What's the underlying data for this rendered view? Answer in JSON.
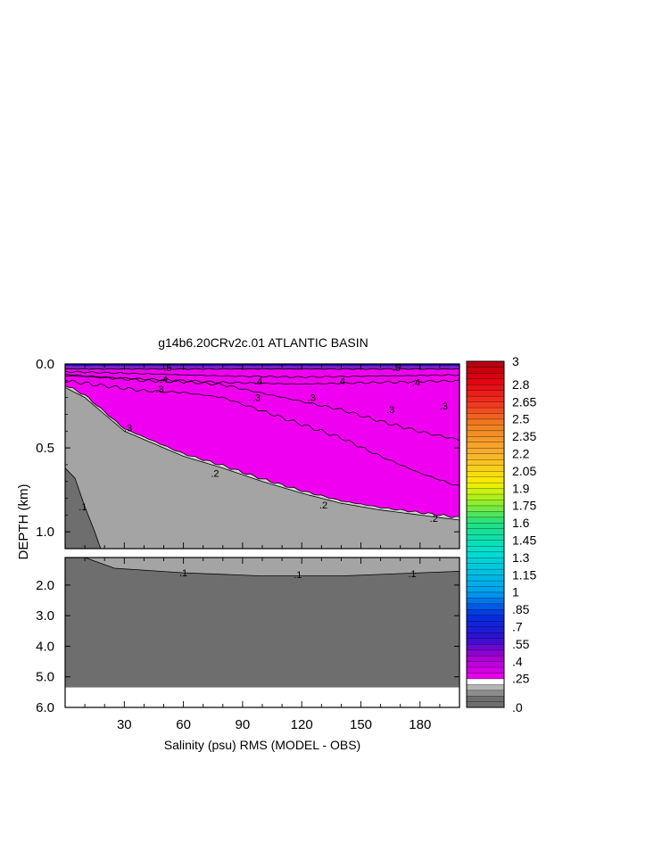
{
  "chart_data": {
    "type": "heatmap",
    "title": "g14b6.20CRv2c.01 ATLANTIC BASIN",
    "xlabel": "Salinity (psu) RMS (MODEL - OBS)",
    "ylabel": "DEPTH (km)",
    "x_range": [
      0,
      200
    ],
    "x_ticks": [
      30,
      60,
      90,
      120,
      150,
      180
    ],
    "x_tick_labels": [
      "30",
      "60",
      "90",
      "120",
      "150",
      "180"
    ],
    "upper_panel": {
      "depth_range_km": [
        0.0,
        1.1
      ],
      "y_ticks": [
        0.0,
        0.5,
        1.0
      ],
      "y_tick_labels": [
        "0.0",
        "0.5",
        "1.0"
      ]
    },
    "lower_panel": {
      "depth_range_km": [
        1.1,
        6.0
      ],
      "y_ticks": [
        2.0,
        3.0,
        4.0,
        5.0,
        6.0
      ],
      "y_tick_labels": [
        "2.0",
        "3.0",
        "4.0",
        "5.0",
        "6.0"
      ],
      "no_data_below_km": 5.35
    },
    "contours": [
      {
        "level": 0.1,
        "label": ".1",
        "upper_depth_km": [
          [
            0,
            0.62
          ],
          [
            5,
            0.68
          ],
          [
            10,
            0.85
          ],
          [
            15,
            1.0
          ],
          [
            18,
            1.1
          ]
        ],
        "lower_depth_km": [
          [
            10,
            1.1
          ],
          [
            25,
            1.45
          ],
          [
            60,
            1.6
          ],
          [
            100,
            1.7
          ],
          [
            140,
            1.7
          ],
          [
            200,
            1.55
          ]
        ]
      },
      {
        "level": 0.2,
        "label": ".2",
        "depth_km": [
          [
            0,
            0.14
          ],
          [
            10,
            0.2
          ],
          [
            20,
            0.3
          ],
          [
            30,
            0.4
          ],
          [
            40,
            0.45
          ],
          [
            60,
            0.55
          ],
          [
            80,
            0.62
          ],
          [
            100,
            0.7
          ],
          [
            120,
            0.77
          ],
          [
            140,
            0.83
          ],
          [
            160,
            0.87
          ],
          [
            180,
            0.9
          ],
          [
            200,
            0.93
          ]
        ]
      },
      {
        "level": 0.3,
        "label": ".3",
        "depth_km": [
          [
            0,
            0.1
          ],
          [
            20,
            0.13
          ],
          [
            40,
            0.16
          ],
          [
            60,
            0.17
          ],
          [
            80,
            0.2
          ],
          [
            100,
            0.28
          ],
          [
            120,
            0.36
          ],
          [
            140,
            0.44
          ],
          [
            160,
            0.55
          ],
          [
            180,
            0.65
          ],
          [
            200,
            0.73
          ]
        ]
      },
      {
        "level": 0.4,
        "label": ".4",
        "depth_km": [
          [
            0,
            0.07
          ],
          [
            40,
            0.09
          ],
          [
            80,
            0.11
          ],
          [
            120,
            0.12
          ],
          [
            160,
            0.11
          ],
          [
            200,
            0.1
          ]
        ]
      },
      {
        "level": 0.5,
        "label": ".5",
        "depth_km": [
          [
            0,
            0.03
          ],
          [
            50,
            0.03
          ],
          [
            100,
            0.03
          ],
          [
            150,
            0.03
          ],
          [
            200,
            0.03
          ]
        ]
      }
    ],
    "contour_labels": [
      {
        "text": ".1",
        "x": 9,
        "depth_km": 0.85
      },
      {
        "text": ".2",
        "x": 76,
        "depth_km": 0.65
      },
      {
        "text": ".2",
        "x": 131,
        "depth_km": 0.84
      },
      {
        "text": ".2",
        "x": 187,
        "depth_km": 0.92
      },
      {
        "text": ".3",
        "x": 32,
        "depth_km": 0.38
      },
      {
        "text": ".3",
        "x": 48,
        "depth_km": 0.15
      },
      {
        "text": ".3",
        "x": 97,
        "depth_km": 0.2
      },
      {
        "text": ".3",
        "x": 125,
        "depth_km": 0.2
      },
      {
        "text": ".3",
        "x": 165,
        "depth_km": 0.27
      },
      {
        "text": ".3",
        "x": 192,
        "depth_km": 0.25
      },
      {
        "text": ".4",
        "x": 50,
        "depth_km": 0.09
      },
      {
        "text": ".4",
        "x": 98,
        "depth_km": 0.1
      },
      {
        "text": ".4",
        "x": 140,
        "depth_km": 0.1
      },
      {
        "text": ".4",
        "x": 178,
        "depth_km": 0.11
      },
      {
        "text": ".5",
        "x": 52,
        "depth_km": 0.02
      },
      {
        "text": ".5",
        "x": 168,
        "depth_km": 0.02
      },
      {
        "text": ".1",
        "x": 60,
        "depth_km": 1.6
      },
      {
        "text": ".1",
        "x": 118,
        "depth_km": 1.65
      },
      {
        "text": ".1",
        "x": 176,
        "depth_km": 1.62
      }
    ],
    "colorbar": {
      "min": 0.0,
      "max": 3.0,
      "step": 0.05,
      "labels": [
        "3",
        "2.8",
        "2.65",
        "2.5",
        "2.35",
        "2.2",
        "2.05",
        "1.9",
        "1.75",
        "1.6",
        "1.45",
        "1.3",
        "1.15",
        "1",
        ".85",
        ".7",
        ".55",
        ".4",
        ".25",
        ".0"
      ],
      "label_values": [
        3.0,
        2.8,
        2.65,
        2.5,
        2.35,
        2.2,
        2.05,
        1.9,
        1.75,
        1.6,
        1.45,
        1.3,
        1.15,
        1.0,
        0.85,
        0.7,
        0.55,
        0.4,
        0.25,
        0.0
      ],
      "color_stops": [
        {
          "v": 0.0,
          "color": "#6e6e6e"
        },
        {
          "v": 0.1,
          "color": "#a0a0a0"
        },
        {
          "v": 0.2,
          "color": "#d2d2d2"
        },
        {
          "v": 0.25,
          "color": "#f000f0"
        },
        {
          "v": 0.45,
          "color": "#a000d0"
        },
        {
          "v": 0.6,
          "color": "#3010d0"
        },
        {
          "v": 0.8,
          "color": "#0030e0"
        },
        {
          "v": 1.0,
          "color": "#00a0f0"
        },
        {
          "v": 1.35,
          "color": "#00e0d0"
        },
        {
          "v": 1.6,
          "color": "#20e080"
        },
        {
          "v": 1.8,
          "color": "#a0f020"
        },
        {
          "v": 1.95,
          "color": "#f8f000"
        },
        {
          "v": 2.2,
          "color": "#f8b030"
        },
        {
          "v": 2.45,
          "color": "#f08020"
        },
        {
          "v": 2.65,
          "color": "#f03020"
        },
        {
          "v": 2.85,
          "color": "#e00010"
        },
        {
          "v": 3.0,
          "color": "#b00010"
        }
      ]
    },
    "fill_colors": {
      "lt_0.1": "#6e6e6e",
      "0.1_0.2": "#a4a4a4",
      "0.2_0.25": "#d2d2d2",
      "0.25_0.5": "#f000f0",
      "0.5_0.55": "#8020c8",
      "gt_0.55": "#2010b0",
      "no_data": "#ffffff"
    },
    "grid": false,
    "legend": "right colorbar"
  }
}
